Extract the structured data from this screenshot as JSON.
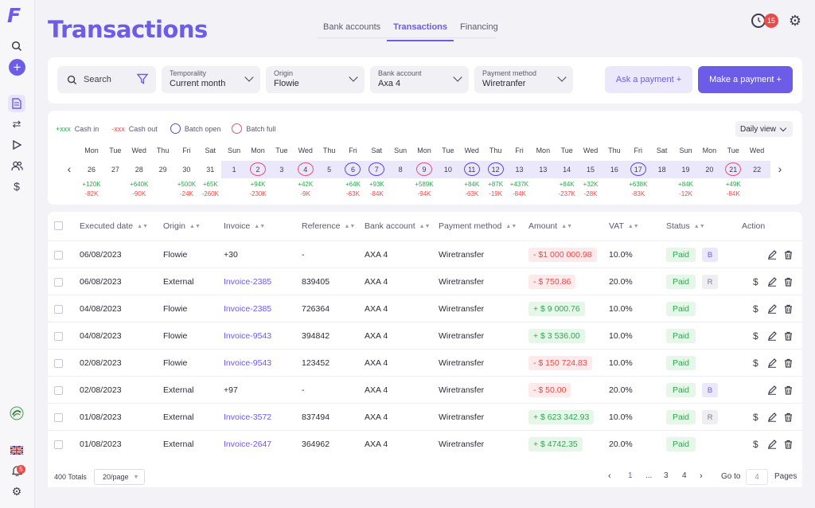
{
  "app": {
    "logo": "F",
    "page_title": "Transactions",
    "tabs": [
      {
        "label": "Bank accounts",
        "active": false
      },
      {
        "label": "Transactions",
        "active": true
      },
      {
        "label": "Financing",
        "active": false
      }
    ],
    "notification_count": "15",
    "sidebar_badge_count": "5",
    "accent_color": "#6c5ce7"
  },
  "sidebar": {
    "icons": [
      "search-icon",
      "add-icon",
      "document-icon",
      "transfer-icon",
      "play-icon",
      "users-icon",
      "dollar-icon",
      "partner-logo-icon",
      "uk-flag-icon",
      "bell-icon",
      "gear-icon"
    ]
  },
  "filters": {
    "search_label": "Search",
    "dropdowns": [
      {
        "label": "Temporality",
        "value": "Current month"
      },
      {
        "label": "Origin",
        "value": "Flowie"
      },
      {
        "label": "Bank account",
        "value": "Axa 4"
      },
      {
        "label": "Payment method",
        "value": "Wiretranfer"
      }
    ],
    "ask_payment": "Ask a payment +",
    "make_payment": "Make a payment +"
  },
  "calendar": {
    "legend": {
      "cash_in_sample": "+xxx",
      "cash_in": "Cash in",
      "cash_out_sample": "-xxx",
      "cash_out": "Cash out",
      "batch_open": "Batch open",
      "batch_full": "Batch full"
    },
    "view": "Daily view",
    "days": [
      {
        "wd": "Mon",
        "d": "26",
        "in": "+120K",
        "out": "-82K",
        "ring": ""
      },
      {
        "wd": "Tue",
        "d": "27",
        "in": "",
        "out": "",
        "ring": ""
      },
      {
        "wd": "Wed",
        "d": "28",
        "in": "+640K",
        "out": "-90K",
        "ring": ""
      },
      {
        "wd": "Thu",
        "d": "29",
        "in": "",
        "out": "",
        "ring": ""
      },
      {
        "wd": "Fri",
        "d": "30",
        "in": "+500K",
        "out": "-24K",
        "ring": ""
      },
      {
        "wd": "Sat",
        "d": "31",
        "in": "+65K",
        "out": "-260K",
        "ring": ""
      },
      {
        "wd": "Sun",
        "d": "1",
        "in": "",
        "out": "",
        "ring": ""
      },
      {
        "wd": "Mon",
        "d": "2",
        "in": "+94K",
        "out": "-230K",
        "ring": "full"
      },
      {
        "wd": "Tue",
        "d": "3",
        "in": "",
        "out": "",
        "ring": ""
      },
      {
        "wd": "Wed",
        "d": "4",
        "in": "+42K",
        "out": "-9K",
        "ring": "full"
      },
      {
        "wd": "Thu",
        "d": "5",
        "in": "",
        "out": "",
        "ring": ""
      },
      {
        "wd": "Fri",
        "d": "6",
        "in": "+64K",
        "out": "-63K",
        "ring": "open"
      },
      {
        "wd": "Sat",
        "d": "7",
        "in": "+93K",
        "out": "-84K",
        "ring": "open"
      },
      {
        "wd": "Sun",
        "d": "8",
        "in": "",
        "out": "",
        "ring": ""
      },
      {
        "wd": "Mon",
        "d": "9",
        "in": "+589K",
        "out": "-94K",
        "ring": "full"
      },
      {
        "wd": "Tue",
        "d": "10",
        "in": "",
        "out": "",
        "ring": ""
      },
      {
        "wd": "Wed",
        "d": "11",
        "in": "+84K",
        "out": "-63K",
        "ring": "open"
      },
      {
        "wd": "Thu",
        "d": "12",
        "in": "+87K",
        "out": "-19K",
        "ring": "open"
      },
      {
        "wd": "Fri",
        "d": "13",
        "in": "+437K",
        "out": "-84K",
        "ring": ""
      },
      {
        "wd": "Mon",
        "d": "13",
        "in": "",
        "out": "",
        "ring": ""
      },
      {
        "wd": "Tue",
        "d": "14",
        "in": "+84K",
        "out": "-237K",
        "ring": ""
      },
      {
        "wd": "Wed",
        "d": "15",
        "in": "+32K",
        "out": "-28K",
        "ring": ""
      },
      {
        "wd": "Thu",
        "d": "16",
        "in": "",
        "out": "",
        "ring": ""
      },
      {
        "wd": "Fri",
        "d": "17",
        "in": "+638K",
        "out": "-83K",
        "ring": "open"
      },
      {
        "wd": "Sat",
        "d": "18",
        "in": "",
        "out": "",
        "ring": ""
      },
      {
        "wd": "Sun",
        "d": "19",
        "in": "+84K",
        "out": "-12K",
        "ring": ""
      },
      {
        "wd": "Mon",
        "d": "20",
        "in": "",
        "out": "",
        "ring": ""
      },
      {
        "wd": "Tue",
        "d": "21",
        "in": "+49K",
        "out": "-84K",
        "ring": "full"
      },
      {
        "wd": "Wed",
        "d": "22",
        "in": "",
        "out": "",
        "ring": ""
      }
    ]
  },
  "table": {
    "headers": [
      "Executed date",
      "Origin",
      "Invoice",
      "Reference",
      "Bank account",
      "Payment method",
      "Amount",
      "VAT",
      "Status",
      "Action"
    ],
    "rows": [
      {
        "date": "06/08/2023",
        "origin": "Flowie",
        "invoice": "+30",
        "invoice_link": false,
        "reference": "-",
        "bank": "AXA 4",
        "method": "Wiretransfer",
        "amount": "- $1 000 000.98",
        "sign": "neg",
        "vat": "10.0%",
        "status": "Paid",
        "tag": "B",
        "dollar": false
      },
      {
        "date": "06/08/2023",
        "origin": "External",
        "invoice": "Invoice-2385",
        "invoice_link": true,
        "reference": "839405",
        "bank": "AXA 4",
        "method": "Wiretransfer",
        "amount": "- $ 750.86",
        "sign": "neg",
        "vat": "20.0%",
        "status": "Paid",
        "tag": "R",
        "dollar": true
      },
      {
        "date": "04/08/2023",
        "origin": "Flowie",
        "invoice": "Invoice-2385",
        "invoice_link": true,
        "reference": "726364",
        "bank": "AXA 4",
        "method": "Wiretransfer",
        "amount": "+ $ 9 000.76",
        "sign": "pos",
        "vat": "10.0%",
        "status": "Paid",
        "tag": "",
        "dollar": true
      },
      {
        "date": "04/08/2023",
        "origin": "Flowie",
        "invoice": "Invoice-9543",
        "invoice_link": true,
        "reference": "394842",
        "bank": "AXA 4",
        "method": "Wiretransfer",
        "amount": "+ $ 3 536.00",
        "sign": "pos",
        "vat": "10.0%",
        "status": "Paid",
        "tag": "",
        "dollar": true
      },
      {
        "date": "02/08/2023",
        "origin": "Flowie",
        "invoice": "Invoice-9543",
        "invoice_link": true,
        "reference": "123452",
        "bank": "AXA 4",
        "method": "Wiretransfer",
        "amount": "- $ 150 724.83",
        "sign": "neg",
        "vat": "10.0%",
        "status": "Paid",
        "tag": "",
        "dollar": true
      },
      {
        "date": "02/08/2023",
        "origin": "External",
        "invoice": "+97",
        "invoice_link": false,
        "reference": "-",
        "bank": "AXA 4",
        "method": "Wiretransfer",
        "amount": "- $ 50.00",
        "sign": "neg",
        "vat": "20.0%",
        "status": "Paid",
        "tag": "B",
        "dollar": false
      },
      {
        "date": "01/08/2023",
        "origin": "External",
        "invoice": "Invoice-3572",
        "invoice_link": true,
        "reference": "837494",
        "bank": "AXA 4",
        "method": "Wiretransfer",
        "amount": "+ $ 623 342.93",
        "sign": "pos",
        "vat": "10.0%",
        "status": "Paid",
        "tag": "R",
        "dollar": true
      },
      {
        "date": "01/08/2023",
        "origin": "External",
        "invoice": "Invoice-2647",
        "invoice_link": true,
        "reference": "364962",
        "bank": "AXA 4",
        "method": "Wiretransfer",
        "amount": "+ $ 4742.35",
        "sign": "pos",
        "vat": "20.0%",
        "status": "Paid",
        "tag": "",
        "dollar": true
      }
    ]
  },
  "pagination": {
    "totals": "400 Totals",
    "per_page": "20/page",
    "pages": [
      "1",
      "...",
      "3",
      "4"
    ],
    "current": "1",
    "goto_label": "Go to",
    "goto_value": "4",
    "pages_label": "Pages"
  }
}
